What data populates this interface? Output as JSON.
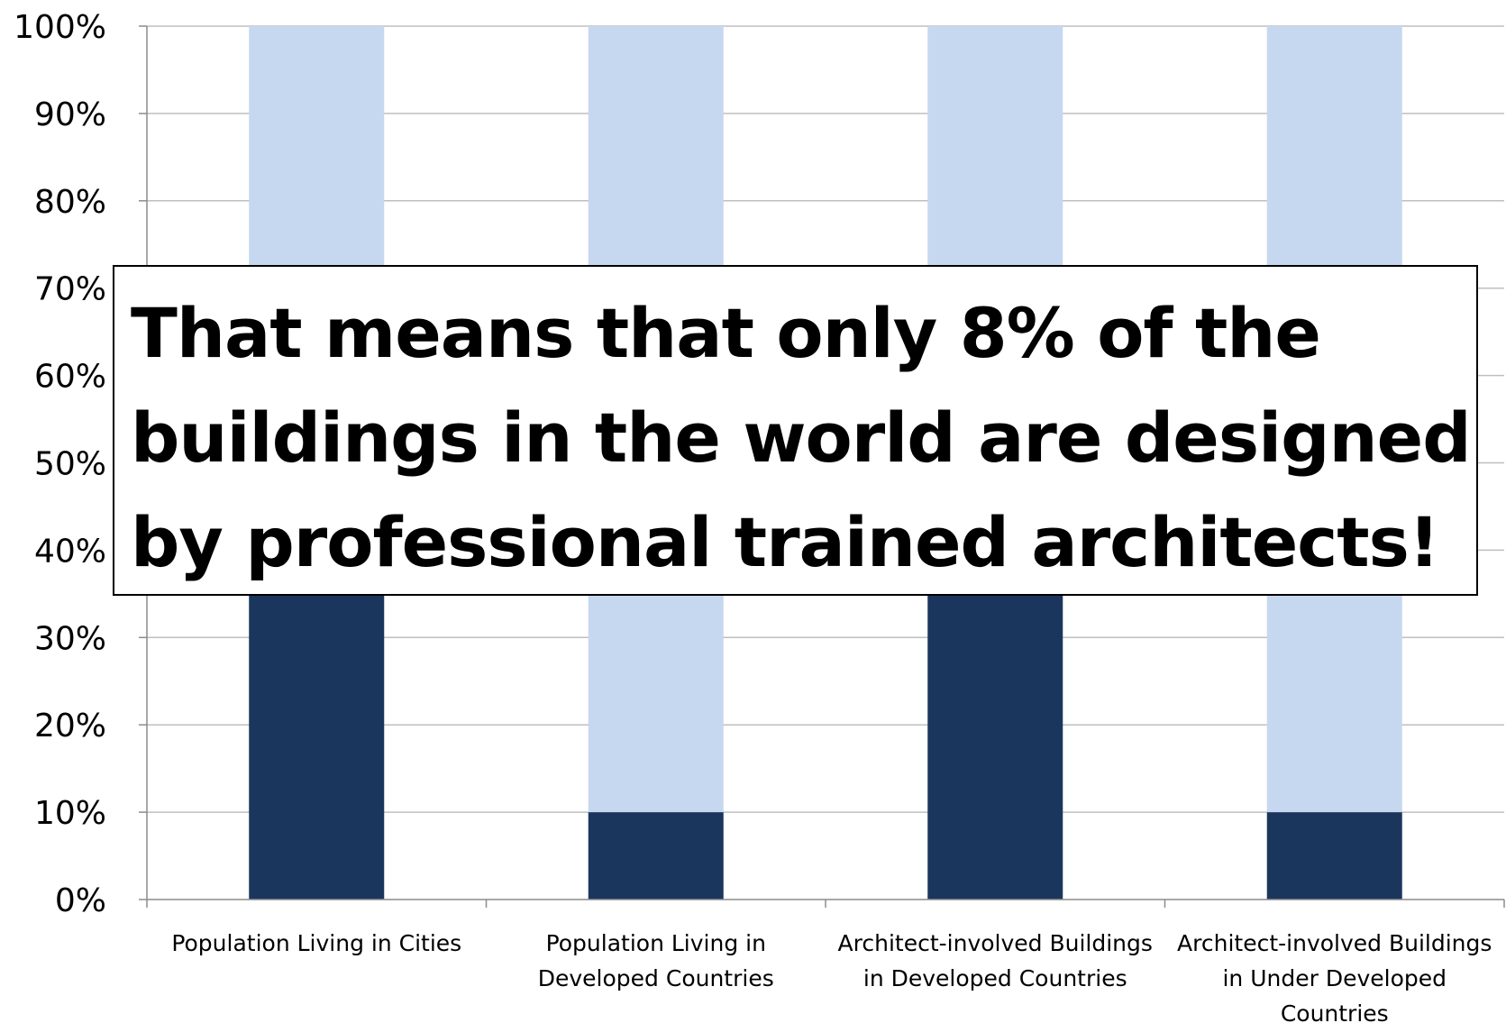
{
  "chart_data": {
    "type": "bar",
    "stacked": "percent",
    "categories": [
      "Population Living in Cities",
      "Population Living in Developed Countries",
      "Architect-involved Buildings in Developed Countries",
      "Architect-involved Buildings in Under Developed Countries"
    ],
    "category_label_lines": [
      [
        "Population Living in Cities"
      ],
      [
        "Population Living in",
        "Developed Countries"
      ],
      [
        "Architect-involved Buildings",
        "in Developed Countries"
      ],
      [
        "Architect-involved Buildings",
        "in Under Developed",
        "Countries"
      ]
    ],
    "series": [
      {
        "values": [
          50,
          10,
          50,
          10
        ],
        "color": "#1b365d"
      },
      {
        "values": [
          50,
          90,
          50,
          90
        ],
        "color": "#c6d8ef"
      }
    ],
    "y_ticks": [
      "0%",
      "10%",
      "20%",
      "30%",
      "40%",
      "50%",
      "60%",
      "70%",
      "80%",
      "90%",
      "100%"
    ],
    "ylim": [
      0,
      100
    ],
    "grid": true,
    "legend": "none"
  },
  "callout": {
    "text": "That means that only 8% of the\nbuildings in the world are designed\nby professional trained architects!"
  }
}
